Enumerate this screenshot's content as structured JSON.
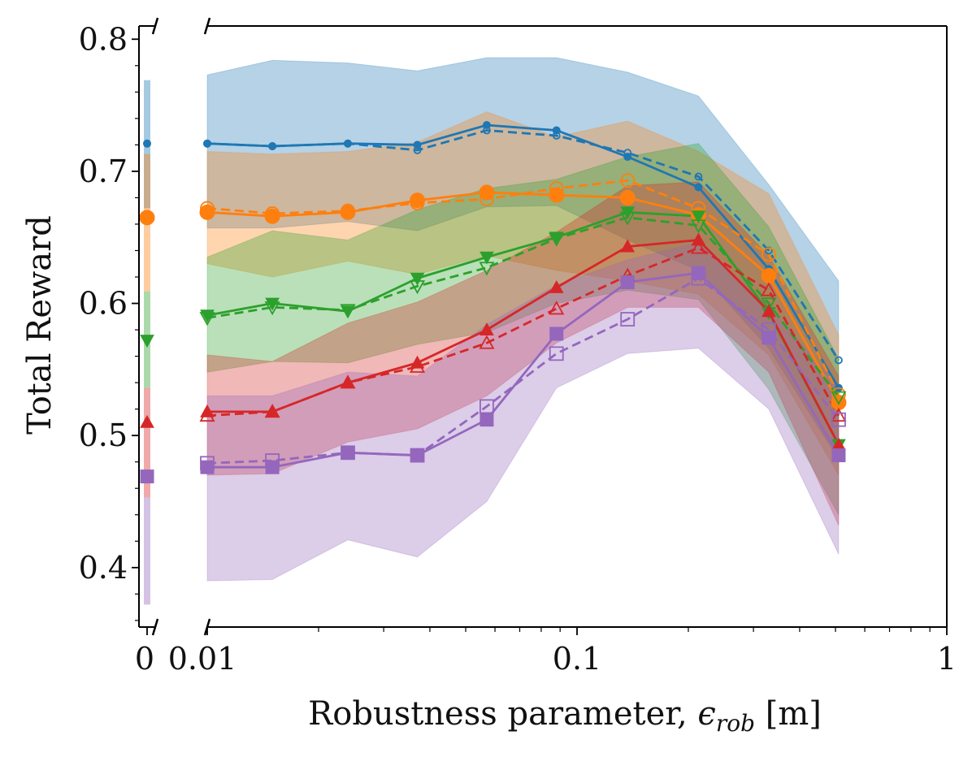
{
  "chart_data": {
    "type": "line",
    "title": "",
    "xlabel": {
      "prefix": "Robustness parameter, ",
      "symbol": "ϵ",
      "subscript": "rob",
      "suffix": " [m]"
    },
    "ylabel": "Total Reward",
    "xscale": "log",
    "xlim": [
      0.01,
      1
    ],
    "ylim": [
      0.355,
      0.81
    ],
    "y_ticks": [
      "0.4",
      "0.5",
      "0.6",
      "0.7",
      "0.8"
    ],
    "y_tick_values": [
      0.4,
      0.5,
      0.6,
      0.7,
      0.8
    ],
    "x_ticks": [
      "0.01",
      "0.1",
      "1"
    ],
    "x_tick_values": [
      0.01,
      0.1,
      1
    ],
    "zero_panel": {
      "tick_label": "0",
      "x_value": 0
    },
    "x": [
      0.01,
      0.015,
      0.024,
      0.037,
      0.057,
      0.088,
      0.137,
      0.213,
      0.33,
      0.51
    ],
    "series": [
      {
        "name": "blue",
        "color": "#1f77b4",
        "marker": "circle-small",
        "solid": [
          0.721,
          0.719,
          0.721,
          0.72,
          0.735,
          0.731,
          0.711,
          0.688,
          0.626,
          0.536
        ],
        "dashed": [
          0.721,
          0.719,
          0.721,
          0.716,
          0.731,
          0.727,
          0.714,
          0.696,
          0.64,
          0.557
        ],
        "band_upper": [
          0.773,
          0.784,
          0.782,
          0.776,
          0.786,
          0.786,
          0.775,
          0.757,
          0.69,
          0.617
        ],
        "band_lower": [
          0.657,
          0.657,
          0.662,
          0.655,
          0.673,
          0.674,
          0.648,
          0.625,
          0.566,
          0.482
        ],
        "zero": {
          "value": 0.721,
          "upper": 0.769,
          "lower": 0.672
        }
      },
      {
        "name": "orange",
        "color": "#ff7f0e",
        "marker": "circle",
        "solid": [
          0.669,
          0.666,
          0.669,
          0.678,
          0.684,
          0.682,
          0.68,
          0.667,
          0.621,
          0.525
        ],
        "dashed": [
          0.672,
          0.668,
          0.67,
          0.676,
          0.679,
          0.687,
          0.693,
          0.672,
          0.637,
          0.531
        ],
        "band_upper": [
          0.715,
          0.713,
          0.715,
          0.722,
          0.745,
          0.726,
          0.738,
          0.715,
          0.683,
          0.576
        ],
        "band_lower": [
          0.63,
          0.62,
          0.632,
          0.622,
          0.636,
          0.625,
          0.617,
          0.607,
          0.561,
          0.47
        ],
        "zero": {
          "value": 0.665,
          "upper": 0.713,
          "lower": 0.609
        }
      },
      {
        "name": "green",
        "color": "#2ca02c",
        "marker": "triangle-down",
        "solid": [
          0.591,
          0.6,
          0.594,
          0.619,
          0.635,
          0.65,
          0.669,
          0.666,
          0.593,
          0.493
        ],
        "dashed": [
          0.589,
          0.597,
          0.595,
          0.613,
          0.627,
          0.649,
          0.665,
          0.659,
          0.6,
          0.529
        ],
        "band_upper": [
          0.635,
          0.655,
          0.648,
          0.671,
          0.687,
          0.694,
          0.711,
          0.721,
          0.658,
          0.558
        ],
        "band_lower": [
          0.548,
          0.556,
          0.555,
          0.569,
          0.578,
          0.6,
          0.61,
          0.603,
          0.535,
          0.44
        ],
        "zero": {
          "value": 0.572,
          "upper": 0.609,
          "lower": 0.536
        }
      },
      {
        "name": "red",
        "color": "#d62728",
        "marker": "triangle-up",
        "solid": [
          0.518,
          0.518,
          0.54,
          0.555,
          0.58,
          0.612,
          0.643,
          0.648,
          0.594,
          0.493
        ],
        "dashed": [
          0.515,
          0.518,
          0.54,
          0.552,
          0.57,
          0.596,
          0.621,
          0.642,
          0.61,
          0.515
        ],
        "band_upper": [
          0.561,
          0.556,
          0.585,
          0.601,
          0.625,
          0.654,
          0.689,
          0.692,
          0.636,
          0.545
        ],
        "band_lower": [
          0.47,
          0.471,
          0.495,
          0.505,
          0.53,
          0.57,
          0.597,
          0.597,
          0.548,
          0.432
        ],
        "zero": {
          "value": 0.51,
          "upper": 0.536,
          "lower": 0.453
        }
      },
      {
        "name": "purple",
        "color": "#9467bd",
        "marker": "square",
        "solid": [
          0.476,
          0.476,
          0.487,
          0.485,
          0.512,
          0.577,
          0.616,
          0.623,
          0.574,
          0.485
        ],
        "dashed": [
          0.479,
          0.481,
          0.487,
          0.485,
          0.522,
          0.562,
          0.588,
          0.619,
          0.58,
          0.512
        ],
        "band_upper": [
          0.53,
          0.53,
          0.548,
          0.545,
          0.584,
          0.614,
          0.633,
          0.646,
          0.598,
          0.537
        ],
        "band_lower": [
          0.39,
          0.391,
          0.421,
          0.408,
          0.45,
          0.536,
          0.562,
          0.566,
          0.52,
          0.41
        ],
        "zero": {
          "value": 0.469,
          "upper": 0.453,
          "lower": 0.372
        }
      }
    ]
  }
}
